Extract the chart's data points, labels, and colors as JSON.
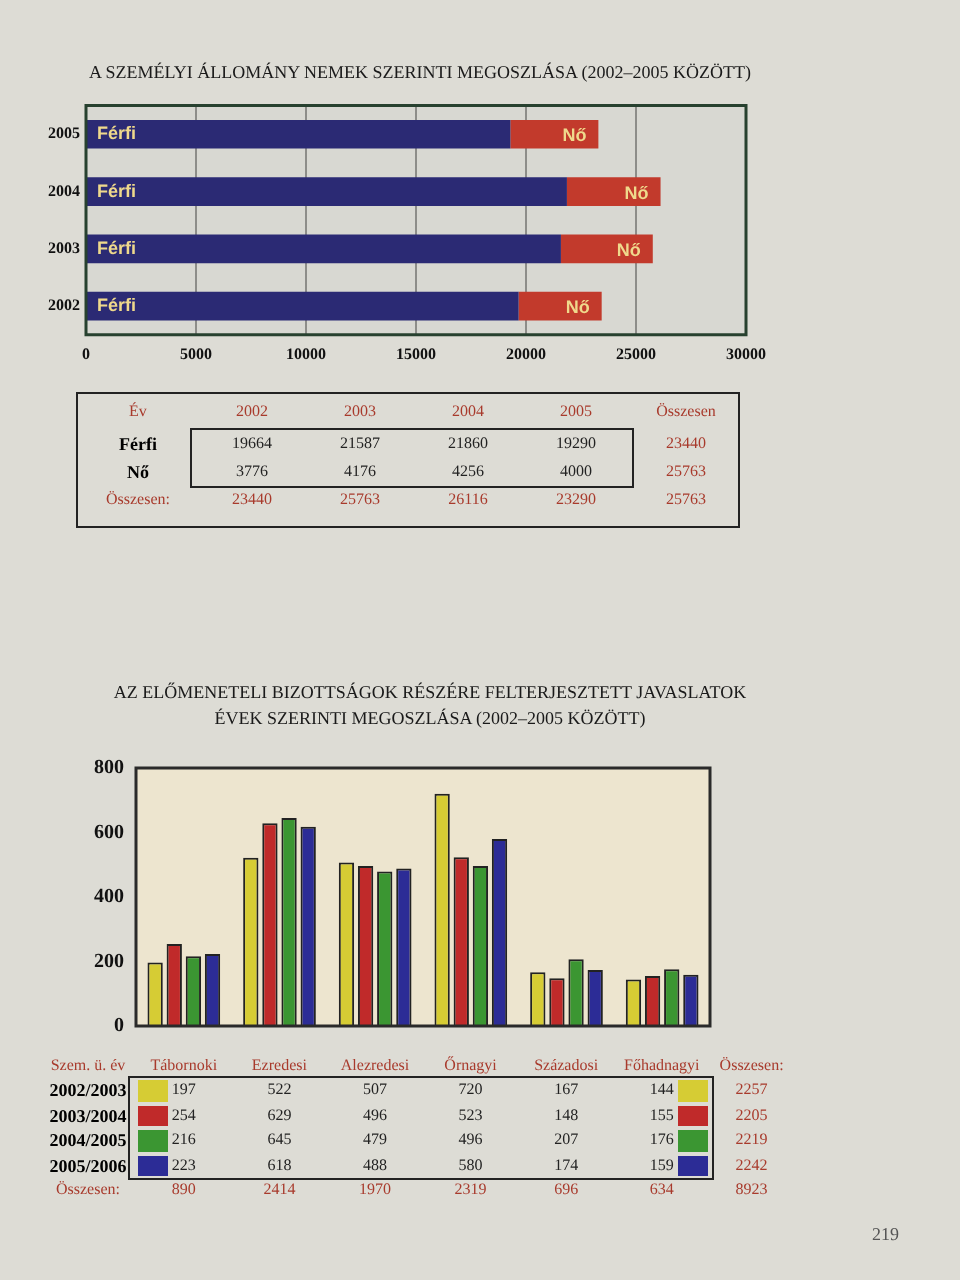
{
  "chart_data": [
    {
      "type": "bar",
      "orientation": "horizontal",
      "stacked": true,
      "title": "A SZEMÉLYI ÁLLOMÁNY NEMEK SZERINTI MEGOSZLÁSA (2002–2005 KÖZÖTT)",
      "categories": [
        "2005",
        "2004",
        "2003",
        "2002"
      ],
      "series": [
        {
          "name": "Férfi",
          "color": "#2b2a74",
          "values": [
            19290,
            21860,
            21587,
            19664
          ]
        },
        {
          "name": "Nő",
          "color": "#c23a2c",
          "values": [
            4000,
            4256,
            4176,
            3776
          ]
        }
      ],
      "xlim": [
        0,
        30000
      ],
      "xticks": [
        0,
        5000,
        10000,
        15000,
        20000,
        25000,
        30000
      ],
      "grid": "x",
      "legend": false,
      "annotations": [
        "Év",
        "Összesen",
        "19664",
        "21587",
        "21860",
        "19290",
        "23440",
        "3776",
        "4176",
        "4256",
        "4000",
        "25763",
        "Összesen:",
        "23440",
        "25763",
        "26116",
        "23290",
        "25763"
      ]
    },
    {
      "type": "bar",
      "title": "AZ ELŐMENETELI BIZOTTSÁGOK RÉSZÉRE FELTERJESZTETT JAVASLATOK ÉVEK SZERINTI MEGOSZLÁSA (2002–2005 KÖZÖTT)",
      "categories": [
        "Tábornoki",
        "Ezredesi",
        "Alezredesi",
        "Őrnagyi",
        "Századosi",
        "Főhadnagyi"
      ],
      "series": [
        {
          "name": "2002/2003",
          "color": "#d6cc34",
          "values": [
            197,
            522,
            507,
            720,
            167,
            144
          ]
        },
        {
          "name": "2003/2004",
          "color": "#c02a2a",
          "values": [
            254,
            629,
            496,
            523,
            148,
            155
          ]
        },
        {
          "name": "2004/2005",
          "color": "#3b9632",
          "values": [
            216,
            645,
            479,
            496,
            207,
            176
          ]
        },
        {
          "name": "2005/2006",
          "color": "#2c2c96",
          "values": [
            223,
            618,
            488,
            580,
            174,
            159
          ]
        }
      ],
      "ylim": [
        0,
        800
      ],
      "yticks": [
        0,
        200,
        400,
        600,
        800
      ],
      "grid": false,
      "legend": "bottom",
      "tick_labels": "y",
      "data_labels": true,
      "annotations": [
        "Szem. ü. év",
        "Összesen:",
        "2257",
        "2205",
        "2219",
        "2242",
        "Összesen:",
        "890",
        "2414",
        "1970",
        "2319",
        "696",
        "634",
        "8923",
        "219"
      ]
    }
  ]
}
